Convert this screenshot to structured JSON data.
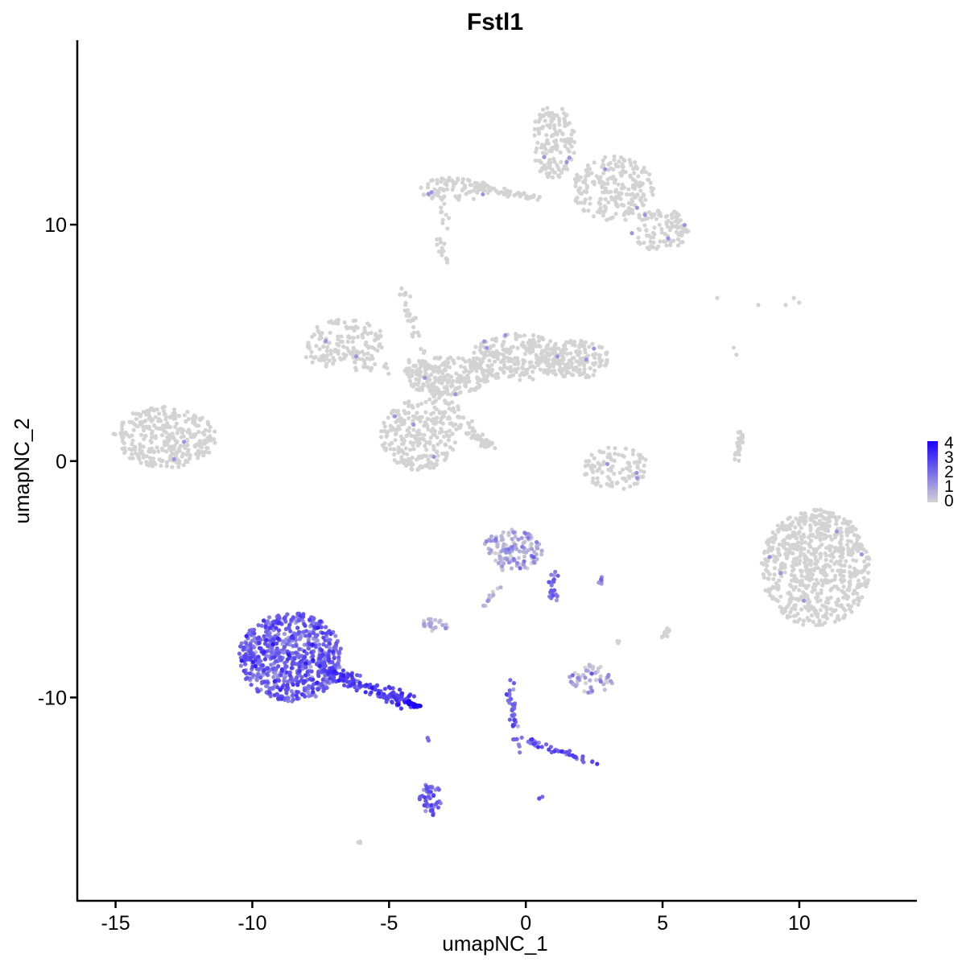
{
  "chart_data": {
    "type": "scatter",
    "title": "Fstl1",
    "xlabel": "umapNC_1",
    "ylabel": "umapNC_2",
    "xlim": [
      -16.4,
      14.3
    ],
    "ylim": [
      -18.6,
      17.8
    ],
    "xticks": [
      -15,
      -10,
      -5,
      0,
      5,
      10
    ],
    "yticks": [
      -10,
      0,
      10
    ],
    "xtick_labels": [
      "-15",
      "-10",
      "-5",
      "0",
      "5",
      "10"
    ],
    "ytick_labels": [
      "-10",
      "0",
      "10"
    ],
    "grid": false,
    "legend": {
      "placement": "right",
      "labels": [
        "4",
        "3",
        "2",
        "1",
        "0"
      ],
      "values": [
        4,
        3,
        2,
        1,
        0
      ],
      "color_low": "#d3d3d3",
      "color_high": "#1a00ff",
      "max": 4
    },
    "clusters": [
      {
        "cx": -13.2,
        "cy": 1.0,
        "rx": 1.9,
        "ry": 1.3,
        "n": 320,
        "expr": 0.0,
        "shape": "ellipse"
      },
      {
        "cx": -6.6,
        "cy": 5.1,
        "rx": 1.5,
        "ry": 0.9,
        "n": 120,
        "expr": 0.0,
        "shape": "ellipse"
      },
      {
        "cx": -3.9,
        "cy": 1.1,
        "rx": 1.4,
        "ry": 1.5,
        "n": 260,
        "expr": 0.0,
        "shape": "ellipse"
      },
      {
        "cx": -2.9,
        "cy": 3.6,
        "rx": 1.6,
        "ry": 0.8,
        "n": 220,
        "expr": 0.0,
        "shape": "ellipse"
      },
      {
        "cx": -0.3,
        "cy": 4.4,
        "rx": 1.7,
        "ry": 1.0,
        "n": 230,
        "expr": 0.0,
        "shape": "ellipse"
      },
      {
        "cx": 1.8,
        "cy": 4.3,
        "rx": 1.3,
        "ry": 0.8,
        "n": 160,
        "expr": 0.0,
        "shape": "ellipse"
      },
      {
        "cx": 1.0,
        "cy": 13.5,
        "rx": 0.8,
        "ry": 1.6,
        "n": 150,
        "expr": 0.0,
        "shape": "ellipse"
      },
      {
        "cx": 3.2,
        "cy": 11.5,
        "rx": 1.5,
        "ry": 1.4,
        "n": 220,
        "expr": 0.0,
        "shape": "ellipse"
      },
      {
        "cx": 4.9,
        "cy": 9.8,
        "rx": 1.1,
        "ry": 0.9,
        "n": 110,
        "expr": 0.0,
        "shape": "ellipse"
      },
      {
        "cx": -2.6,
        "cy": 11.5,
        "rx": 1.3,
        "ry": 0.5,
        "n": 90,
        "expr": 0.0,
        "shape": "ellipse"
      },
      {
        "cx": 3.3,
        "cy": -0.3,
        "rx": 1.2,
        "ry": 0.9,
        "n": 110,
        "expr": 0.0,
        "shape": "ellipse"
      },
      {
        "cx": 10.6,
        "cy": -4.5,
        "rx": 2.0,
        "ry": 2.5,
        "n": 700,
        "expr": 0.0,
        "shape": "ellipse"
      },
      {
        "cx": -0.5,
        "cy": -3.8,
        "rx": 1.1,
        "ry": 0.9,
        "n": 130,
        "expr": 0.15,
        "shape": "ellipse"
      },
      {
        "cx": -3.3,
        "cy": -6.9,
        "rx": 0.5,
        "ry": 0.3,
        "n": 25,
        "expr": 0.1,
        "shape": "ellipse"
      },
      {
        "cx": 2.4,
        "cy": -9.2,
        "rx": 0.8,
        "ry": 0.6,
        "n": 55,
        "expr": 0.1,
        "shape": "ellipse"
      },
      {
        "cx": -8.6,
        "cy": -8.3,
        "rx": 1.9,
        "ry": 1.9,
        "n": 700,
        "expr": 0.5,
        "shape": "ellipse"
      },
      {
        "cx": -3.5,
        "cy": -14.3,
        "rx": 0.4,
        "ry": 0.7,
        "n": 45,
        "expr": 0.5,
        "shape": "ellipse"
      }
    ],
    "paths": [
      {
        "from": [
          -8.0,
          4.4
        ],
        "to": [
          -3.5,
          3.8
        ],
        "n": 60,
        "spread": 0.3,
        "expr": 0.0
      },
      {
        "from": [
          -4.6,
          7.4
        ],
        "to": [
          -3.2,
          2.5
        ],
        "n": 50,
        "spread": 0.2,
        "expr": 0.0
      },
      {
        "from": [
          -3.0,
          2.6
        ],
        "to": [
          -1.4,
          0.6
        ],
        "n": 40,
        "spread": 0.2,
        "expr": 0.0
      },
      {
        "from": [
          -2.5,
          1.5
        ],
        "to": [
          -1.2,
          0.6
        ],
        "n": 35,
        "spread": 0.15,
        "expr": 0.0
      },
      {
        "from": [
          -1.5,
          11.5
        ],
        "to": [
          0.5,
          11.1
        ],
        "n": 45,
        "spread": 0.15,
        "expr": 0.0
      },
      {
        "from": [
          -3.0,
          11.0
        ],
        "to": [
          -3.2,
          8.6
        ],
        "n": 20,
        "spread": 0.2,
        "expr": 0.0
      },
      {
        "from": [
          7.9,
          1.2
        ],
        "to": [
          7.7,
          0.0
        ],
        "n": 30,
        "spread": 0.1,
        "expr": 0.0
      },
      {
        "from": [
          2.7,
          -5.2
        ],
        "to": [
          2.8,
          -4.9
        ],
        "n": 6,
        "spread": 0.05,
        "expr": 0.3
      },
      {
        "from": [
          1.0,
          -5.8
        ],
        "to": [
          1.0,
          -4.7
        ],
        "n": 25,
        "spread": 0.2,
        "expr": 0.45
      },
      {
        "from": [
          -1.5,
          -6.1
        ],
        "to": [
          -1.0,
          -5.3
        ],
        "n": 12,
        "spread": 0.1,
        "expr": 0.1
      },
      {
        "from": [
          -7.5,
          -8.8
        ],
        "to": [
          -4.1,
          -10.3
        ],
        "n": 160,
        "spread": 0.3,
        "expr": 0.65
      },
      {
        "from": [
          -4.3,
          -10.2
        ],
        "to": [
          -3.9,
          -10.4
        ],
        "n": 20,
        "spread": 0.08,
        "expr": 0.95
      },
      {
        "from": [
          -0.6,
          -9.3
        ],
        "to": [
          -0.3,
          -12.3
        ],
        "n": 40,
        "spread": 0.15,
        "expr": 0.5
      },
      {
        "from": [
          0.0,
          -11.8
        ],
        "to": [
          2.6,
          -12.8
        ],
        "n": 45,
        "spread": 0.15,
        "expr": 0.55
      },
      {
        "from": [
          5.0,
          -7.5
        ],
        "to": [
          5.2,
          -7.1
        ],
        "n": 12,
        "spread": 0.1,
        "expr": 0.0
      },
      {
        "from": [
          3.3,
          -7.7
        ],
        "to": [
          3.4,
          -7.6
        ],
        "n": 4,
        "spread": 0.05,
        "expr": 0.0
      },
      {
        "from": [
          -2.9,
          8.4
        ],
        "to": [
          -2.9,
          8.6
        ],
        "n": 4,
        "spread": 0.05,
        "expr": 0.0
      },
      {
        "from": [
          -3.6,
          -11.9
        ],
        "to": [
          -3.6,
          -11.6
        ],
        "n": 3,
        "spread": 0.05,
        "expr": 0.4
      },
      {
        "from": [
          0.5,
          -14.3
        ],
        "to": [
          0.6,
          -14.2
        ],
        "n": 3,
        "spread": 0.05,
        "expr": 0.4
      },
      {
        "from": [
          -6.1,
          -16.2
        ],
        "to": [
          -6.0,
          -16.1
        ],
        "n": 3,
        "spread": 0.05,
        "expr": 0.0
      }
    ],
    "singletons": [
      [
        7.0,
        6.9
      ],
      [
        8.5,
        6.6
      ],
      [
        9.5,
        6.6
      ],
      [
        9.8,
        6.9
      ],
      [
        10.0,
        6.7
      ],
      [
        7.6,
        4.8
      ],
      [
        7.7,
        4.5
      ]
    ]
  }
}
